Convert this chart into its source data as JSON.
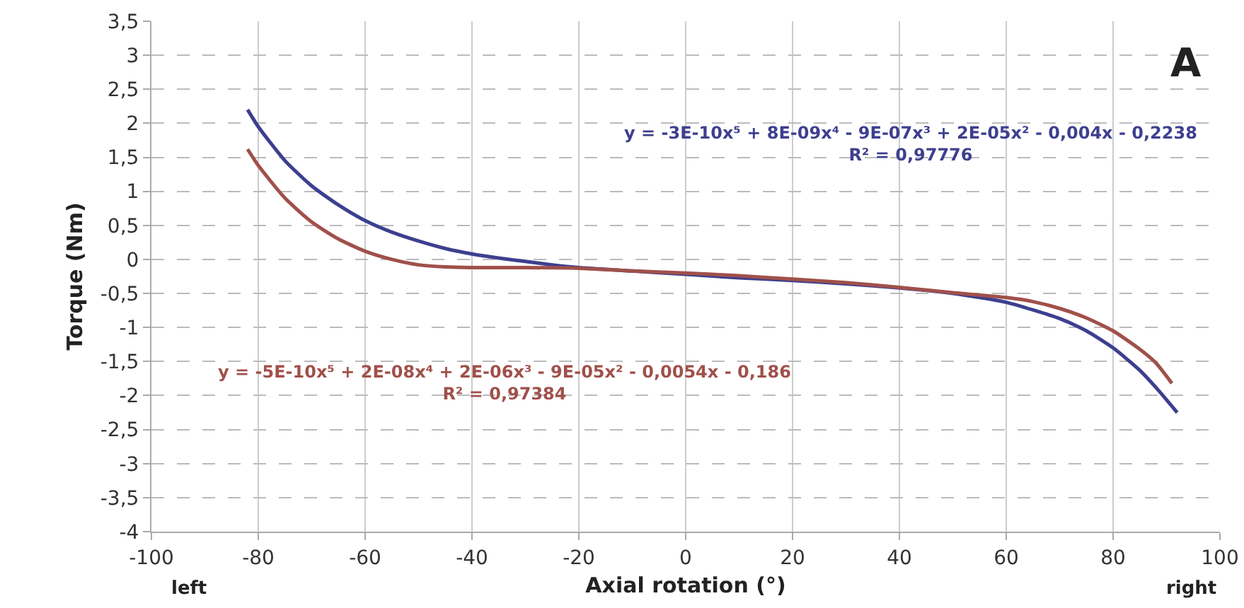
{
  "chart_data": {
    "type": "line",
    "xlabel": "Axial rotation (°)",
    "ylabel": "Torque (Nm)",
    "xlim": [
      -100,
      100
    ],
    "xticks": [
      -100,
      -80,
      -60,
      -40,
      -20,
      0,
      20,
      40,
      60,
      80,
      100
    ],
    "ylim": [
      -4,
      3.5
    ],
    "yticks": [
      {
        "value": -4,
        "label": "-4"
      },
      {
        "value": -3.5,
        "label": "-3,5"
      },
      {
        "value": -3,
        "label": "-3"
      },
      {
        "value": -2.5,
        "label": "-2,5"
      },
      {
        "value": -2,
        "label": "-2"
      },
      {
        "value": -1.5,
        "label": "-1,5"
      },
      {
        "value": -1,
        "label": "-1"
      },
      {
        "value": -0.5,
        "label": "-0,5"
      },
      {
        "value": 0,
        "label": "0"
      },
      {
        "value": 0.5,
        "label": "0,5"
      },
      {
        "value": 1,
        "label": "1"
      },
      {
        "value": 1.5,
        "label": "1,5"
      },
      {
        "value": 2,
        "label": "2"
      },
      {
        "value": 2.5,
        "label": "2,5"
      },
      {
        "value": 3,
        "label": "3"
      },
      {
        "value": 3.5,
        "label": "3,5"
      }
    ],
    "grid": true,
    "marker": "none",
    "line_style": "solid",
    "series": [
      {
        "color": "#3d3f8f",
        "x": [
          -82,
          -80,
          -75,
          -70,
          -65,
          -60,
          -55,
          -50,
          -45,
          -40,
          -35,
          -30,
          -25,
          -20,
          -10,
          0,
          10,
          20,
          30,
          40,
          50,
          60,
          70,
          75,
          80,
          85,
          88,
          92
        ],
        "values": [
          2.2,
          1.95,
          1.45,
          1.08,
          0.8,
          0.57,
          0.4,
          0.27,
          0.16,
          0.08,
          0.02,
          -0.03,
          -0.08,
          -0.12,
          -0.17,
          -0.22,
          -0.27,
          -0.31,
          -0.36,
          -0.42,
          -0.5,
          -0.63,
          -0.87,
          -1.05,
          -1.3,
          -1.63,
          -1.88,
          -2.25
        ]
      },
      {
        "color": "#a0504a",
        "x": [
          -82,
          -80,
          -75,
          -70,
          -65,
          -60,
          -55,
          -50,
          -45,
          -40,
          -30,
          -20,
          -10,
          0,
          10,
          20,
          30,
          40,
          50,
          60,
          65,
          70,
          75,
          80,
          85,
          88,
          91
        ],
        "values": [
          1.62,
          1.38,
          0.9,
          0.55,
          0.3,
          0.12,
          0.0,
          -0.08,
          -0.11,
          -0.12,
          -0.12,
          -0.13,
          -0.17,
          -0.2,
          -0.24,
          -0.29,
          -0.34,
          -0.41,
          -0.49,
          -0.56,
          -0.62,
          -0.72,
          -0.86,
          -1.05,
          -1.32,
          -1.52,
          -1.82
        ]
      }
    ],
    "annotations": [
      "y = -3E-10x⁵ + 8E-09x⁴ - 9E-07x³ + 2E-05x² - 0,004x - 0,2238\nR² = 0,97776",
      "y = -5E-10x⁵ + 2E-08x⁴ + 2E-06x³ - 9E-05x² - 0,0054x - 0,186\nR² = 0,97384",
      "A",
      "left",
      "right"
    ]
  }
}
